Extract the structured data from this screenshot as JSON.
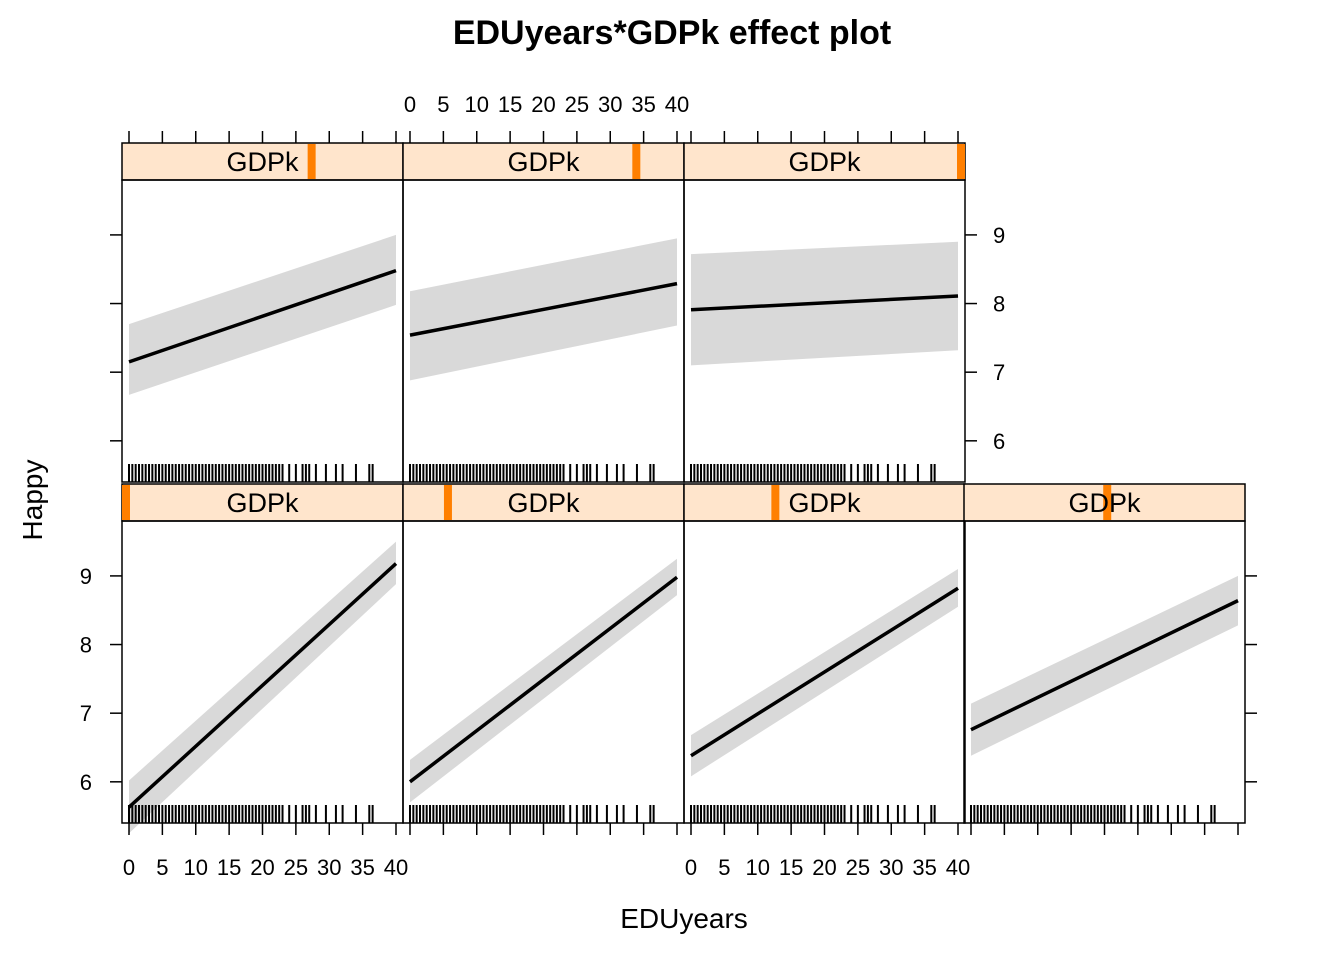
{
  "chart_data": {
    "type": "line",
    "title": "EDUyears*GDPk effect plot",
    "xlabel": "EDUyears",
    "ylabel": "Happy",
    "strip_variable": "GDPk",
    "xlim": [
      0,
      40
    ],
    "ylim": [
      5.4,
      9.8
    ],
    "xticks": [
      0,
      5,
      10,
      15,
      20,
      25,
      30,
      35,
      40
    ],
    "yticks": [
      6,
      7,
      8,
      9
    ],
    "line_color": "#000000",
    "band_color": "#d9d9d9",
    "strip_fill": "#ffe5cc",
    "strip_indicator_color": "#ff7f00",
    "panels": [
      {
        "strip_label": "GDPk",
        "gdpk_level": 0.0,
        "x": [
          0,
          40
        ],
        "fit": [
          5.63,
          9.18
        ],
        "lower": [
          5.25,
          8.88
        ],
        "upper": [
          6.02,
          9.5
        ]
      },
      {
        "strip_label": "GDPk",
        "gdpk_level": 0.15,
        "x": [
          0,
          40
        ],
        "fit": [
          6.0,
          8.98
        ],
        "lower": [
          5.7,
          8.72
        ],
        "upper": [
          6.32,
          9.25
        ]
      },
      {
        "strip_label": "GDPk",
        "gdpk_level": 0.32,
        "x": [
          0,
          40
        ],
        "fit": [
          6.38,
          8.82
        ],
        "lower": [
          6.08,
          8.55
        ],
        "upper": [
          6.68,
          9.1
        ]
      },
      {
        "strip_label": "GDPk",
        "gdpk_level": 0.51,
        "x": [
          0,
          40
        ],
        "fit": [
          6.76,
          8.64
        ],
        "lower": [
          6.38,
          8.28
        ],
        "upper": [
          7.14,
          9.0
        ]
      },
      {
        "strip_label": "GDPk",
        "gdpk_level": 0.68,
        "x": [
          0,
          40
        ],
        "fit": [
          7.15,
          8.48
        ],
        "lower": [
          6.67,
          7.98
        ],
        "upper": [
          7.7,
          9.0
        ]
      },
      {
        "strip_label": "GDPk",
        "gdpk_level": 0.84,
        "x": [
          0,
          40
        ],
        "fit": [
          7.54,
          8.29
        ],
        "lower": [
          6.88,
          7.68
        ],
        "upper": [
          8.18,
          8.95
        ]
      },
      {
        "strip_label": "GDPk",
        "gdpk_level": 1.0,
        "x": [
          0,
          40
        ],
        "fit": [
          7.91,
          8.11
        ],
        "lower": [
          7.1,
          7.32
        ],
        "upper": [
          8.72,
          8.9
        ]
      }
    ]
  }
}
